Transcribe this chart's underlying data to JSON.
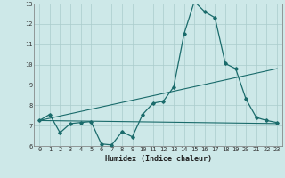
{
  "title": "",
  "xlabel": "Humidex (Indice chaleur)",
  "xlim": [
    -0.5,
    23.5
  ],
  "ylim": [
    6,
    13
  ],
  "yticks": [
    6,
    7,
    8,
    9,
    10,
    11,
    12,
    13
  ],
  "xticks": [
    0,
    1,
    2,
    3,
    4,
    5,
    6,
    7,
    8,
    9,
    10,
    11,
    12,
    13,
    14,
    15,
    16,
    17,
    18,
    19,
    20,
    21,
    22,
    23
  ],
  "background_color": "#cde8e8",
  "grid_color": "#aacccc",
  "line_color": "#1a6b6b",
  "line1_x": [
    0,
    1,
    2,
    3,
    4,
    5,
    6,
    7,
    8,
    9,
    10,
    11,
    12,
    13,
    14,
    15,
    16,
    17,
    18,
    19,
    20,
    21,
    22,
    23
  ],
  "line1_y": [
    7.25,
    7.55,
    6.65,
    7.1,
    7.15,
    7.2,
    6.1,
    6.05,
    6.7,
    6.45,
    7.55,
    8.1,
    8.2,
    8.9,
    11.5,
    13.1,
    12.6,
    12.3,
    10.05,
    9.8,
    8.3,
    7.4,
    7.25,
    7.15
  ],
  "line2_x": [
    0,
    23
  ],
  "line2_y": [
    7.25,
    9.8
  ],
  "line3_x": [
    0,
    23
  ],
  "line3_y": [
    7.25,
    7.1
  ]
}
